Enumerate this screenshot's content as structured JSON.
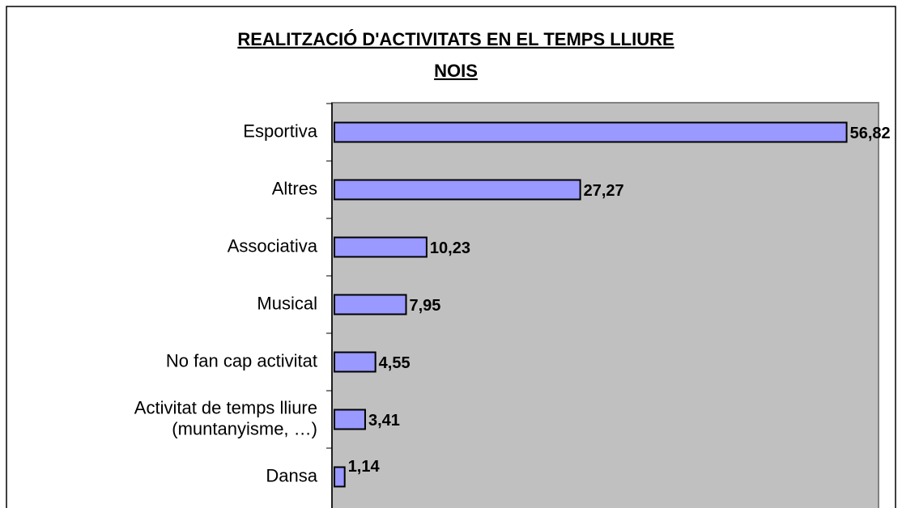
{
  "chart_data": {
    "type": "bar",
    "orientation": "horizontal",
    "title": "REALITZACIÓ D'ACTIVITATS EN EL TEMPS LLIURE",
    "subtitle": "NOIS",
    "categories": [
      "Esportiva",
      "Altres",
      "Associativa",
      "Musical",
      "No fan cap activitat",
      "Activitat de temps lliure\n(muntanyisme, …)",
      "Dansa"
    ],
    "values": [
      56.82,
      27.27,
      10.23,
      7.95,
      4.55,
      3.41,
      1.14
    ],
    "value_labels": [
      "56,82",
      "27,27",
      "10,23",
      "7,95",
      "4,55",
      "3,41",
      "1,14"
    ],
    "color": "#9999ff",
    "xlim": [
      0,
      60
    ]
  }
}
